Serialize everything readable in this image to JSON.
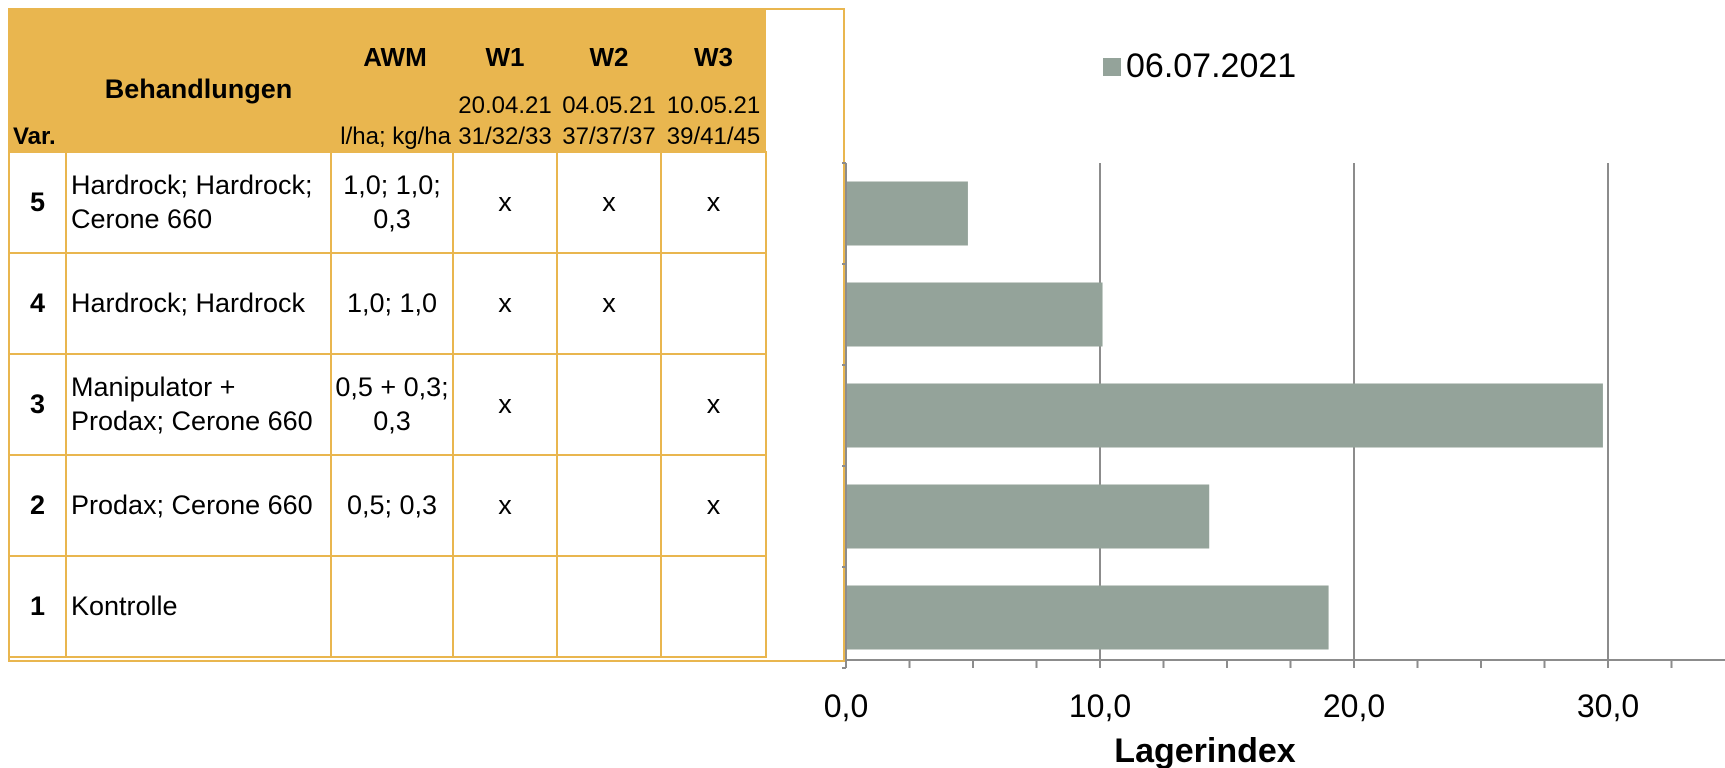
{
  "table": {
    "header": {
      "var_label": "Var.",
      "treatments_label": "Behandlungen",
      "awm_label": "AWM",
      "awm_unit": "l/ha; kg/ha",
      "w1_label": "W1",
      "w1_date": "20.04.21",
      "w1_bbch": "31/32/33",
      "w2_label": "W2",
      "w2_date": "04.05.21",
      "w2_bbch": "37/37/37",
      "w3_label": "W3",
      "w3_date": "10.05.21",
      "w3_bbch": "39/41/45"
    },
    "rows": [
      {
        "var": "5",
        "treatment": "Hardrock; Hardrock; Cerone 660",
        "awm": "1,0; 1,0; 0,3",
        "w1": "x",
        "w2": "x",
        "w3": "x"
      },
      {
        "var": "4",
        "treatment": "Hardrock; Hardrock",
        "awm": "1,0; 1,0",
        "w1": "x",
        "w2": "x",
        "w3": ""
      },
      {
        "var": "3",
        "treatment": "Manipulator + Prodax; Cerone 660",
        "awm": "0,5 + 0,3; 0,3",
        "w1": "x",
        "w2": "",
        "w3": "x"
      },
      {
        "var": "2",
        "treatment": "Prodax; Cerone 660",
        "awm": "0,5; 0,3",
        "w1": "x",
        "w2": "",
        "w3": "x"
      },
      {
        "var": "1",
        "treatment": "Kontrolle",
        "awm": "",
        "w1": "",
        "w2": "",
        "w3": ""
      }
    ]
  },
  "chart_data": {
    "type": "bar",
    "orientation": "horizontal",
    "categories": [
      "5",
      "4",
      "3",
      "2",
      "1"
    ],
    "series": [
      {
        "name": "06.07.2021",
        "values": [
          4.8,
          10.1,
          29.8,
          14.3,
          19.0
        ]
      }
    ],
    "xlabel": "Lagerindex",
    "xlim": [
      0,
      35
    ],
    "xticks": [
      "0,0",
      "10,0",
      "20,0",
      "30,0"
    ],
    "xtick_values": [
      0,
      10,
      20,
      30
    ],
    "grid": "vertical major",
    "legend": "top",
    "colors": {
      "bar": "#94A39A",
      "grid": "#8C8C8C",
      "axis": "#8C8C8C"
    }
  },
  "colors": {
    "header_bg": "#E9B64F",
    "table_border": "#E9B64F"
  }
}
